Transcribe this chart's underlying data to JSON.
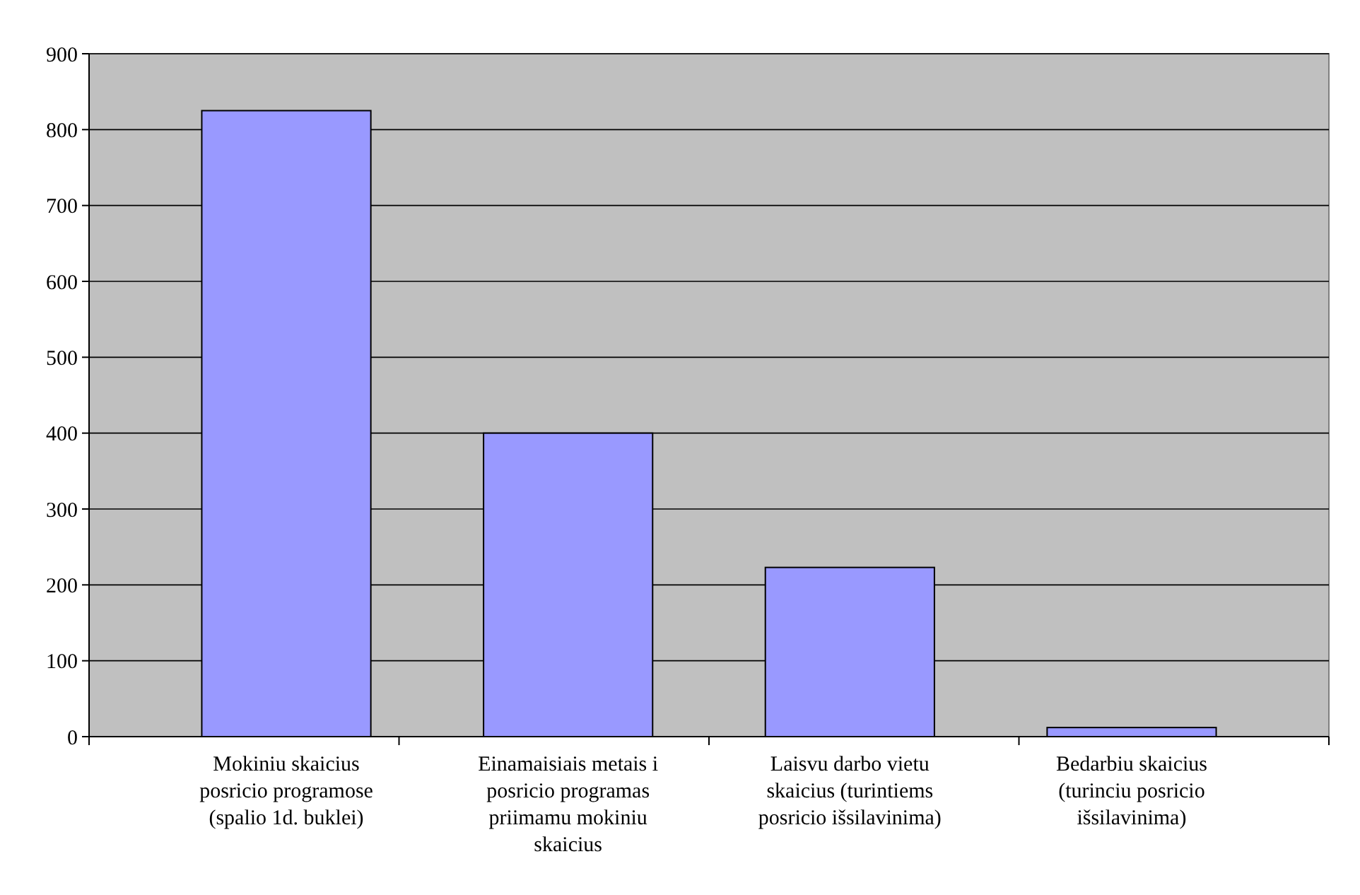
{
  "chart_data": {
    "type": "bar",
    "categories": [
      "Mokiniu skaicius posricio programose (spalio 1d. buklei)",
      "Einamaisiais metais i posricio programas priimamu mokiniu skaicius",
      "Laisvu darbo vietu skaicius (turintiems posricio išsilavinima)",
      "Bedarbiu skaicius (turinciu posricio išsilavinima)"
    ],
    "values": [
      825,
      400,
      223,
      12
    ],
    "color": "#9999ff",
    "ylim": [
      0,
      900
    ],
    "yticks": [
      0,
      100,
      200,
      300,
      400,
      500,
      600,
      700,
      800,
      900
    ],
    "grid": "y"
  }
}
